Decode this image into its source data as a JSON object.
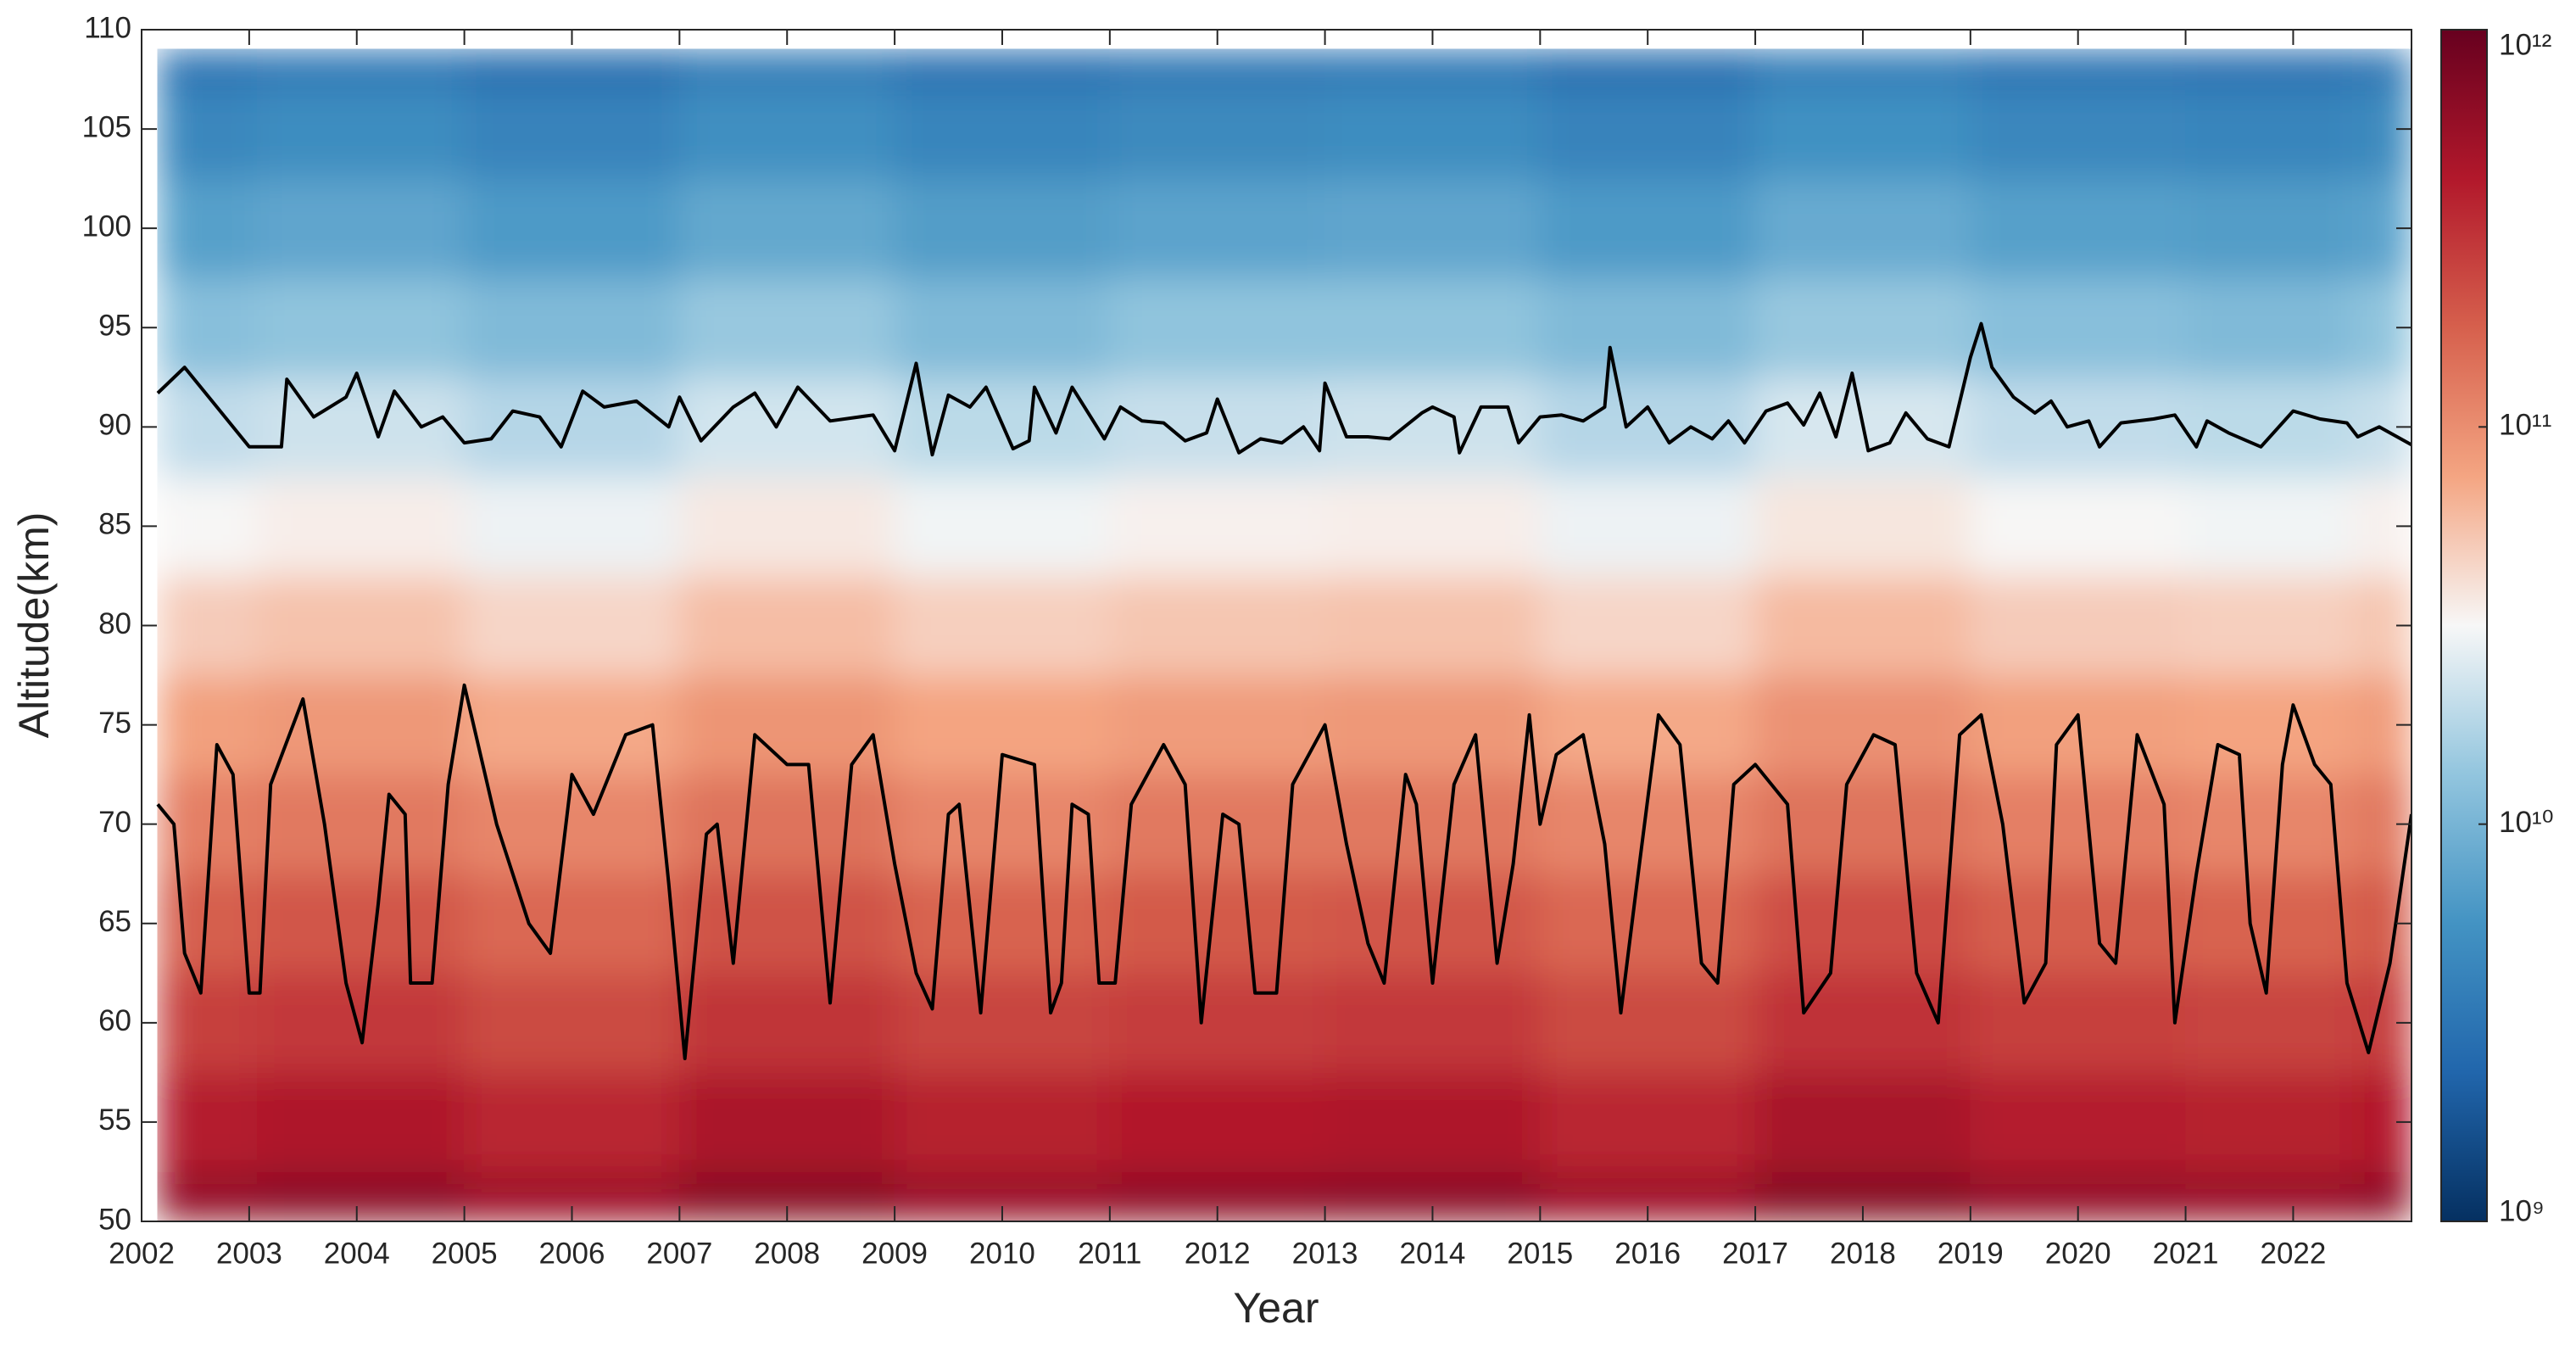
{
  "chart_data": {
    "type": "heatmap",
    "xlabel": "Year",
    "ylabel": "Altitude(km)",
    "xlim": [
      2002,
      2023.1
    ],
    "ylim": [
      50,
      110
    ],
    "xticks": [
      2002,
      2003,
      2004,
      2005,
      2006,
      2007,
      2008,
      2009,
      2010,
      2011,
      2012,
      2013,
      2014,
      2015,
      2016,
      2017,
      2018,
      2019,
      2020,
      2021,
      2022
    ],
    "yticks": [
      50,
      55,
      60,
      65,
      70,
      75,
      80,
      85,
      90,
      95,
      100,
      105,
      110
    ],
    "colorbar": {
      "log": true,
      "clim": [
        1000000000,
        1000000000000
      ],
      "ticks": [
        {
          "value": 1000000000,
          "label": "10⁹"
        },
        {
          "value": 10000000000,
          "label": "10¹⁰"
        },
        {
          "value": 100000000000,
          "label": "10¹¹"
        },
        {
          "value": 1000000000000,
          "label": "10¹²"
        }
      ],
      "colormap": [
        "#053061",
        "#2166ac",
        "#4393c3",
        "#92c5de",
        "#f7f7f7",
        "#f4a582",
        "#d6604d",
        "#b2182b",
        "#67001f"
      ]
    },
    "x": [
      2002.15,
      2004,
      2006,
      2008,
      2010,
      2012,
      2014,
      2016,
      2018,
      2020,
      2022,
      2023.1
    ],
    "y": [
      50,
      55,
      60,
      65,
      70,
      75,
      80,
      85,
      90,
      95,
      100,
      105,
      109
    ],
    "z": [
      [
        600000000000.0,
        660000000000.0,
        540000000000.0,
        690000000000.0,
        570000000000.0,
        630000000000.0,
        660000000000.0,
        540000000000.0,
        720000000000.0,
        600000000000.0,
        570000000000.0,
        630000000000.0
      ],
      [
        400000000000.0,
        440000000000.0,
        360000000000.0,
        460000000000.0,
        380000000000.0,
        420000000000.0,
        440000000000.0,
        360000000000.0,
        480000000000.0,
        400000000000.0,
        380000000000.0,
        420000000000.0
      ],
      [
        260000000000.0,
        290000000000.0,
        230000000000.0,
        300000000000.0,
        250000000000.0,
        270000000000.0,
        290000000000.0,
        230000000000.0,
        310000000000.0,
        260000000000.0,
        250000000000.0,
        270000000000.0
      ],
      [
        180000000000.0,
        200000000000.0,
        160000000000.0,
        210000000000.0,
        170000000000.0,
        190000000000.0,
        200000000000.0,
        160000000000.0,
        220000000000.0,
        180000000000.0,
        170000000000.0,
        190000000000.0
      ],
      [
        120000000000.0,
        130000000000.0,
        110000000000.0,
        140000000000.0,
        110000000000.0,
        130000000000.0,
        130000000000.0,
        110000000000.0,
        140000000000.0,
        120000000000.0,
        110000000000.0,
        130000000000.0
      ],
      [
        80000000000.0,
        88000000000.0,
        72000000000.0,
        92000000000.0,
        76000000000.0,
        84000000000.0,
        88000000000.0,
        72000000000.0,
        96000000000.0,
        80000000000.0,
        76000000000.0,
        84000000000.0
      ],
      [
        50000000000.0,
        55000000000.0,
        45000000000.0,
        58000000000.0,
        48000000000.0,
        53000000000.0,
        55000000000.0,
        45000000000.0,
        60000000000.0,
        50000000000.0,
        48000000000.0,
        53000000000.0
      ],
      [
        32000000000.0,
        35000000000.0,
        29000000000.0,
        37000000000.0,
        30000000000.0,
        34000000000.0,
        35000000000.0,
        29000000000.0,
        38000000000.0,
        32000000000.0,
        30000000000.0,
        34000000000.0
      ],
      [
        20000000000.0,
        22000000000.0,
        18000000000.0,
        23000000000.0,
        19000000000.0,
        21000000000.0,
        22000000000.0,
        18000000000.0,
        24000000000.0,
        20000000000.0,
        19000000000.0,
        21000000000.0
      ],
      [
        12000000000.0,
        13000000000.0,
        11000000000.0,
        14000000000.0,
        11000000000.0,
        13000000000.0,
        13000000000.0,
        11000000000.0,
        14000000000.0,
        12000000000.0,
        11000000000.0,
        13000000000.0
      ],
      [
        7000000000.0,
        7700000000.0,
        6300000000.0,
        8100000000.0,
        6700000000.0,
        7400000000.0,
        7700000000.0,
        6300000000.0,
        8400000000.0,
        7000000000.0,
        6700000000.0,
        7400000000.0
      ],
      [
        4500000000.0,
        5000000000.0,
        4100000000.0,
        5200000000.0,
        4300000000.0,
        4700000000.0,
        5000000000.0,
        4100000000.0,
        5400000000.0,
        4500000000.0,
        4300000000.0,
        4700000000.0
      ],
      [
        3000000000.0,
        3300000000.0,
        2700000000.0,
        3500000000.0,
        2900000000.0,
        3200000000.0,
        3300000000.0,
        2700000000.0,
        3600000000.0,
        3000000000.0,
        2900000000.0,
        3200000000.0
      ]
    ],
    "contours": [
      {
        "color": "#000000",
        "x": [
          2002.15,
          2002.4,
          2002.7,
          2003.0,
          2003.3,
          2003.35,
          2003.6,
          2003.9,
          2004.0,
          2004.2,
          2004.35,
          2004.6,
          2004.8,
          2005.0,
          2005.25,
          2005.45,
          2005.7,
          2005.9,
          2006.1,
          2006.3,
          2006.6,
          2006.9,
          2007.0,
          2007.2,
          2007.5,
          2007.7,
          2007.9,
          2008.1,
          2008.4,
          2008.8,
          2009.0,
          2009.2,
          2009.35,
          2009.5,
          2009.7,
          2009.85,
          2010.1,
          2010.25,
          2010.3,
          2010.5,
          2010.65,
          2010.95,
          2011.1,
          2011.3,
          2011.5,
          2011.7,
          2011.9,
          2012.0,
          2012.2,
          2012.4,
          2012.6,
          2012.8,
          2012.95,
          2013.0,
          2013.2,
          2013.4,
          2013.6,
          2013.9,
          2014.0,
          2014.2,
          2014.25,
          2014.45,
          2014.7,
          2014.8,
          2015.0,
          2015.2,
          2015.4,
          2015.6,
          2015.65,
          2015.8,
          2016.0,
          2016.2,
          2016.4,
          2016.6,
          2016.75,
          2016.9,
          2017.1,
          2017.3,
          2017.45,
          2017.6,
          2017.75,
          2017.9,
          2018.05,
          2018.25,
          2018.4,
          2018.6,
          2018.8,
          2019.0,
          2019.1,
          2019.2,
          2019.4,
          2019.6,
          2019.75,
          2019.9,
          2020.1,
          2020.2,
          2020.4,
          2020.7,
          2020.9,
          2021.1,
          2021.2,
          2021.4,
          2021.7,
          2022.0,
          2022.25,
          2022.5,
          2022.6,
          2022.8,
          2023.1
        ],
        "y": [
          91.7,
          93,
          91,
          89,
          89,
          92.4,
          90.5,
          91.5,
          92.7,
          89.5,
          91.8,
          90,
          90.5,
          89.2,
          89.4,
          90.8,
          90.5,
          89,
          91.8,
          91,
          91.3,
          90,
          91.5,
          89.3,
          91,
          91.7,
          90,
          92,
          90.3,
          90.6,
          88.8,
          93.2,
          88.6,
          91.6,
          91,
          92,
          88.9,
          89.3,
          92,
          89.7,
          92,
          89.4,
          91,
          90.3,
          90.2,
          89.3,
          89.7,
          91.4,
          88.7,
          89.4,
          89.2,
          90,
          88.8,
          92.2,
          89.5,
          89.5,
          89.4,
          90.7,
          91,
          90.5,
          88.7,
          91,
          91,
          89.2,
          90.5,
          90.6,
          90.3,
          91,
          94,
          90,
          91,
          89.2,
          90,
          89.4,
          90.3,
          89.2,
          90.8,
          91.2,
          90.1,
          91.7,
          89.5,
          92.7,
          88.8,
          89.2,
          90.7,
          89.4,
          89,
          93.5,
          95.2,
          93,
          91.5,
          90.7,
          91.3,
          90,
          90.3,
          89,
          90.2,
          90.4,
          90.6,
          89,
          90.3,
          89.7,
          89,
          90.8,
          90.4,
          90.2,
          89.5,
          90,
          89.1
        ]
      },
      {
        "color": "#000000",
        "x": [
          2002.15,
          2002.3,
          2002.4,
          2002.55,
          2002.7,
          2002.85,
          2003.0,
          2003.1,
          2003.2,
          2003.5,
          2003.7,
          2003.9,
          2004.05,
          2004.2,
          2004.3,
          2004.45,
          2004.5,
          2004.7,
          2004.85,
          2005.0,
          2005.3,
          2005.6,
          2005.8,
          2006.0,
          2006.2,
          2006.5,
          2006.75,
          2006.9,
          2007.05,
          2007.25,
          2007.35,
          2007.5,
          2007.7,
          2008.0,
          2008.2,
          2008.4,
          2008.6,
          2008.8,
          2009.0,
          2009.2,
          2009.35,
          2009.5,
          2009.6,
          2009.8,
          2010.0,
          2010.3,
          2010.45,
          2010.55,
          2010.65,
          2010.8,
          2010.9,
          2011.05,
          2011.2,
          2011.5,
          2011.7,
          2011.85,
          2012.05,
          2012.2,
          2012.35,
          2012.55,
          2012.7,
          2013.0,
          2013.2,
          2013.4,
          2013.55,
          2013.75,
          2013.85,
          2014.0,
          2014.2,
          2014.4,
          2014.6,
          2014.75,
          2014.9,
          2015.0,
          2015.15,
          2015.4,
          2015.6,
          2015.75,
          2015.9,
          2016.1,
          2016.3,
          2016.5,
          2016.65,
          2016.8,
          2017.0,
          2017.3,
          2017.45,
          2017.7,
          2017.85,
          2018.1,
          2018.3,
          2018.5,
          2018.7,
          2018.9,
          2019.1,
          2019.3,
          2019.5,
          2019.7,
          2019.8,
          2020.0,
          2020.2,
          2020.35,
          2020.55,
          2020.8,
          2020.9,
          2021.1,
          2021.3,
          2021.5,
          2021.6,
          2021.75,
          2021.9,
          2022.0,
          2022.2,
          2022.35,
          2022.5,
          2022.7,
          2022.9,
          2023.1
        ],
        "y": [
          71,
          70,
          63.5,
          61.5,
          74,
          72.5,
          61.5,
          61.5,
          72,
          76.3,
          70,
          62,
          59,
          66,
          71.5,
          70.5,
          62,
          62,
          72,
          77,
          70,
          65,
          63.5,
          72.5,
          70.5,
          74.5,
          75,
          67,
          58.2,
          69.5,
          70,
          63,
          74.5,
          73,
          73,
          61,
          73,
          74.5,
          68,
          62.5,
          60.7,
          70.5,
          71,
          60.5,
          73.5,
          73,
          60.5,
          62,
          71,
          70.5,
          62,
          62,
          71,
          74,
          72,
          60,
          70.5,
          70,
          61.5,
          61.5,
          72,
          75,
          69,
          64,
          62,
          72.5,
          71,
          62,
          72,
          74.5,
          63,
          68,
          75.5,
          70,
          73.5,
          74.5,
          69,
          60.5,
          67,
          75.5,
          74,
          63,
          62,
          72,
          73,
          71,
          60.5,
          62.5,
          72,
          74.5,
          74,
          62.5,
          60,
          74.5,
          75.5,
          70,
          61,
          63,
          74,
          75.5,
          64,
          63,
          74.5,
          71,
          60,
          67.5,
          74,
          73.5,
          65,
          61.5,
          73,
          76,
          73,
          72,
          62,
          58.5,
          63,
          70.5
        ]
      }
    ]
  }
}
